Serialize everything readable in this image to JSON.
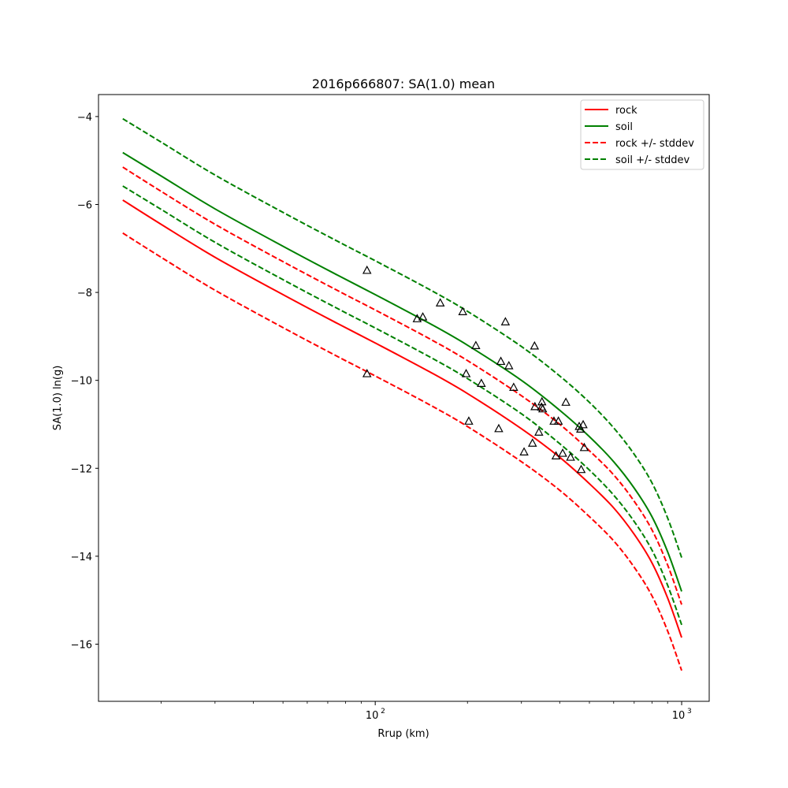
{
  "chart_data": {
    "type": "line",
    "title": "2016p666807: SA(1.0) mean",
    "xlabel": "Rrup (km)",
    "ylabel": "SA(1.0) ln(g)",
    "xscale": "log",
    "xlim": [
      12.5,
      1230
    ],
    "ylim": [
      -17.3,
      -3.5
    ],
    "yticks": [
      -16,
      -14,
      -12,
      -10,
      -8,
      -6,
      -4
    ],
    "xticks_major": [
      100,
      1000
    ],
    "xtick_labels": [
      "10",
      "10"
    ],
    "xtick_exponents": [
      "2",
      "3"
    ],
    "grid": false,
    "legend_placement": "top-right",
    "series": [
      {
        "name": "rock",
        "color": "#ff0000",
        "style": "solid",
        "points": [
          [
            15,
            -5.9
          ],
          [
            20,
            -6.45
          ],
          [
            30,
            -7.2
          ],
          [
            50,
            -8.05
          ],
          [
            75,
            -8.7
          ],
          [
            100,
            -9.15
          ],
          [
            150,
            -9.8
          ],
          [
            200,
            -10.3
          ],
          [
            300,
            -11.1
          ],
          [
            400,
            -11.75
          ],
          [
            500,
            -12.35
          ],
          [
            600,
            -12.9
          ],
          [
            700,
            -13.5
          ],
          [
            800,
            -14.15
          ],
          [
            900,
            -14.95
          ],
          [
            1000,
            -15.85
          ]
        ]
      },
      {
        "name": "soil",
        "color": "#008000",
        "style": "solid",
        "points": [
          [
            15,
            -4.82
          ],
          [
            20,
            -5.35
          ],
          [
            30,
            -6.1
          ],
          [
            50,
            -6.95
          ],
          [
            75,
            -7.6
          ],
          [
            100,
            -8.05
          ],
          [
            150,
            -8.7
          ],
          [
            200,
            -9.2
          ],
          [
            300,
            -10.0
          ],
          [
            400,
            -10.68
          ],
          [
            500,
            -11.28
          ],
          [
            600,
            -11.85
          ],
          [
            700,
            -12.45
          ],
          [
            800,
            -13.1
          ],
          [
            900,
            -13.9
          ],
          [
            1000,
            -14.8
          ]
        ]
      },
      {
        "name": "rock +/- stddev",
        "color": "#ff0000",
        "style": "dashed",
        "points": [
          [
            15,
            -5.15
          ],
          [
            20,
            -5.7
          ],
          [
            30,
            -6.45
          ],
          [
            50,
            -7.3
          ],
          [
            75,
            -7.95
          ],
          [
            100,
            -8.4
          ],
          [
            150,
            -9.05
          ],
          [
            200,
            -9.55
          ],
          [
            300,
            -10.35
          ],
          [
            400,
            -11.0
          ],
          [
            500,
            -11.6
          ],
          [
            600,
            -12.15
          ],
          [
            700,
            -12.75
          ],
          [
            800,
            -13.4
          ],
          [
            900,
            -14.2
          ],
          [
            1000,
            -15.1
          ]
        ]
      },
      {
        "name": "rock +/- stddev",
        "color": "#ff0000",
        "style": "dashed",
        "points": [
          [
            15,
            -6.65
          ],
          [
            20,
            -7.2
          ],
          [
            30,
            -7.95
          ],
          [
            50,
            -8.8
          ],
          [
            75,
            -9.45
          ],
          [
            100,
            -9.9
          ],
          [
            150,
            -10.55
          ],
          [
            200,
            -11.05
          ],
          [
            300,
            -11.85
          ],
          [
            400,
            -12.5
          ],
          [
            500,
            -13.1
          ],
          [
            600,
            -13.65
          ],
          [
            700,
            -14.25
          ],
          [
            800,
            -14.9
          ],
          [
            900,
            -15.7
          ],
          [
            1000,
            -16.6
          ]
        ]
      },
      {
        "name": "soil +/- stddev",
        "color": "#008000",
        "style": "dashed",
        "points": [
          [
            15,
            -4.05
          ],
          [
            20,
            -4.58
          ],
          [
            30,
            -5.33
          ],
          [
            50,
            -6.18
          ],
          [
            75,
            -6.83
          ],
          [
            100,
            -7.28
          ],
          [
            150,
            -7.93
          ],
          [
            200,
            -8.43
          ],
          [
            300,
            -9.23
          ],
          [
            400,
            -9.9
          ],
          [
            500,
            -10.5
          ],
          [
            600,
            -11.08
          ],
          [
            700,
            -11.68
          ],
          [
            800,
            -12.33
          ],
          [
            900,
            -13.13
          ],
          [
            1000,
            -14.03
          ]
        ]
      },
      {
        "name": "soil +/- stddev",
        "color": "#008000",
        "style": "dashed",
        "points": [
          [
            15,
            -5.58
          ],
          [
            20,
            -6.11
          ],
          [
            30,
            -6.86
          ],
          [
            50,
            -7.71
          ],
          [
            75,
            -8.36
          ],
          [
            100,
            -8.81
          ],
          [
            150,
            -9.46
          ],
          [
            200,
            -9.96
          ],
          [
            300,
            -10.76
          ],
          [
            400,
            -11.44
          ],
          [
            500,
            -12.04
          ],
          [
            600,
            -12.61
          ],
          [
            700,
            -13.21
          ],
          [
            800,
            -13.86
          ],
          [
            900,
            -14.66
          ],
          [
            1000,
            -15.56
          ]
        ]
      }
    ],
    "observations": {
      "marker": "triangle",
      "color": "#000000",
      "points": [
        [
          94,
          -7.5
        ],
        [
          94,
          -9.85
        ],
        [
          137,
          -8.6
        ],
        [
          143,
          -8.56
        ],
        [
          163,
          -8.24
        ],
        [
          193,
          -8.44
        ],
        [
          198,
          -9.85
        ],
        [
          202,
          -10.93
        ],
        [
          213,
          -9.21
        ],
        [
          222,
          -10.07
        ],
        [
          253,
          -11.1
        ],
        [
          257,
          -9.57
        ],
        [
          266,
          -8.67
        ],
        [
          273,
          -9.67
        ],
        [
          283,
          -10.16
        ],
        [
          306,
          -11.63
        ],
        [
          326,
          -11.43
        ],
        [
          331,
          -9.22
        ],
        [
          332,
          -10.6
        ],
        [
          342,
          -11.18
        ],
        [
          349,
          -10.61
        ],
        [
          350,
          -10.49
        ],
        [
          352,
          -10.65
        ],
        [
          383,
          -10.93
        ],
        [
          389,
          -11.72
        ],
        [
          396,
          -10.93
        ],
        [
          409,
          -11.66
        ],
        [
          419,
          -10.5
        ],
        [
          434,
          -11.75
        ],
        [
          463,
          -11.05
        ],
        [
          468,
          -11.11
        ],
        [
          470,
          -12.03
        ],
        [
          477,
          -11.01
        ],
        [
          481,
          -11.53
        ]
      ]
    },
    "legend": [
      {
        "label": "rock",
        "color": "#ff0000",
        "style": "solid"
      },
      {
        "label": "soil",
        "color": "#008000",
        "style": "solid"
      },
      {
        "label": "rock +/- stddev",
        "color": "#ff0000",
        "style": "dashed"
      },
      {
        "label": "soil +/- stddev",
        "color": "#008000",
        "style": "dashed"
      }
    ]
  }
}
